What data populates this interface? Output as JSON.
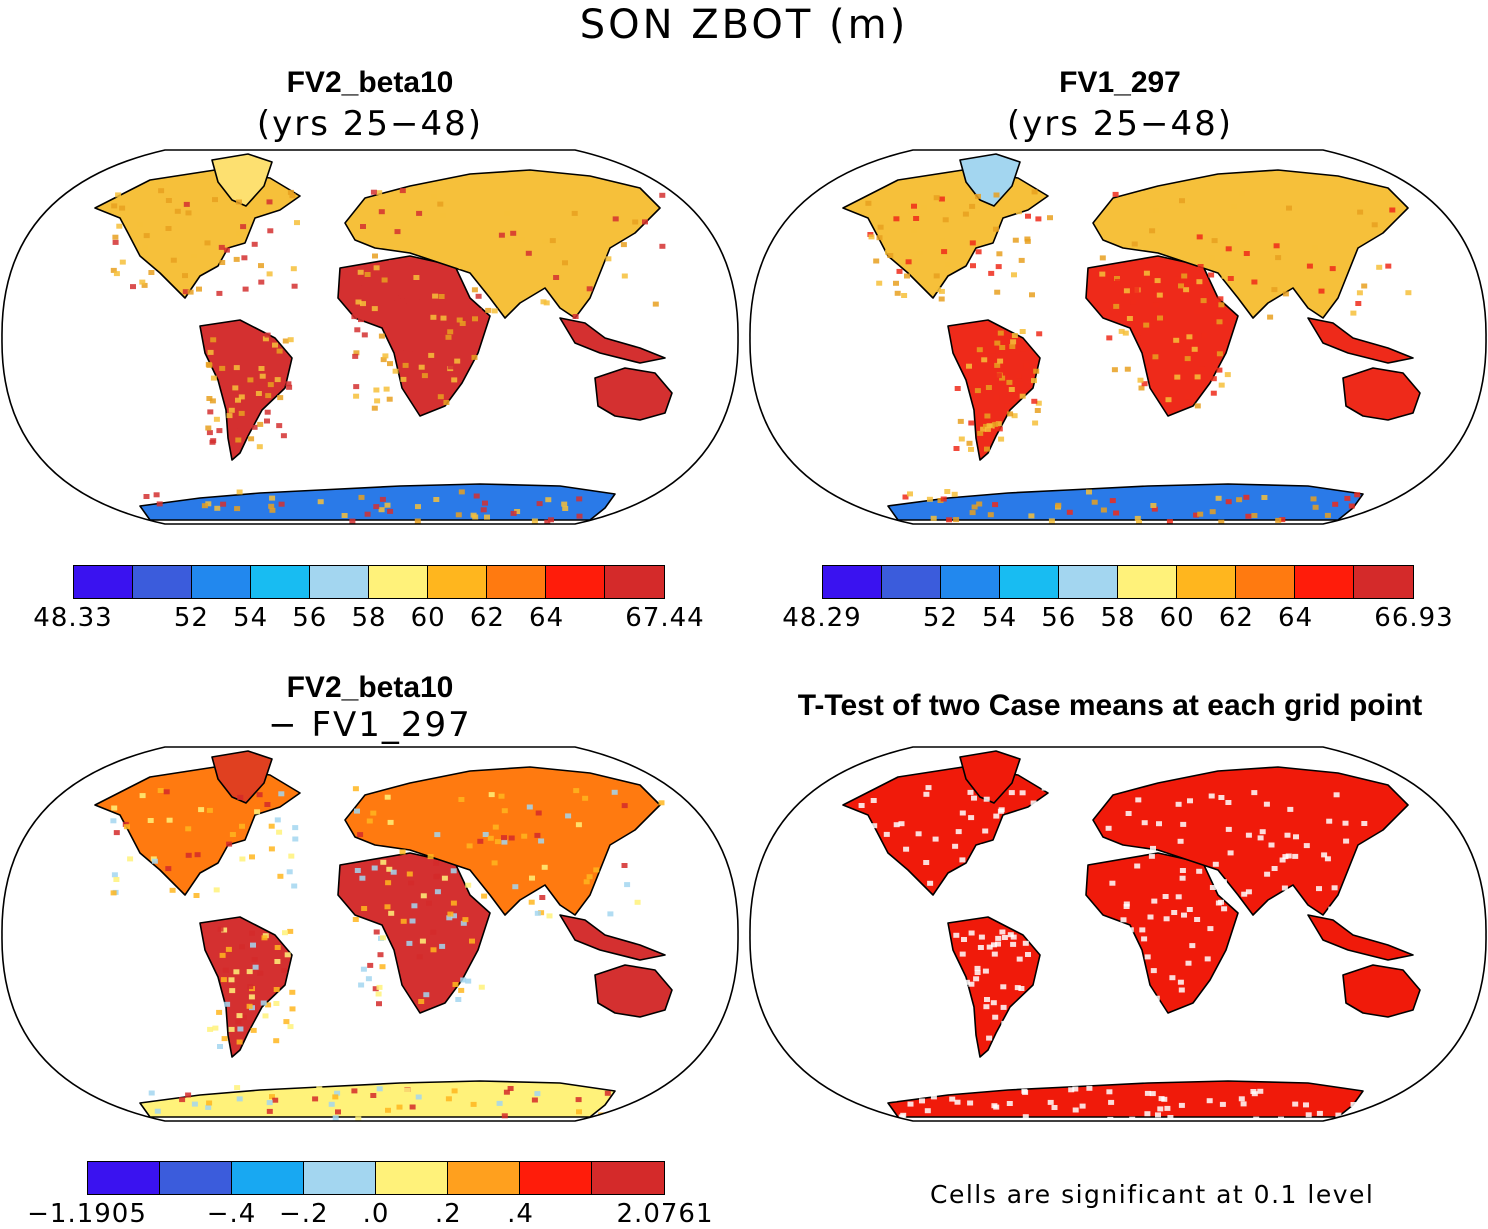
{
  "figure": {
    "title": "SON ZBOT (m)",
    "footnote": "Cells are significant at 0.1 level"
  },
  "panels": {
    "top_left": {
      "title": "FV2_beta10",
      "subtitle": "(yrs 25−48)"
    },
    "top_right": {
      "title": "FV1_297",
      "subtitle": "(yrs 25−48)"
    },
    "bottom_left": {
      "title": "FV2_beta10",
      "subtitle": "− FV1_297"
    },
    "bottom_right": {
      "title": "T-Test of two Case means at each grid point"
    }
  },
  "colorbars": {
    "top_left": {
      "colors": [
        "#3a12f0",
        "#3b5cdc",
        "#2288ee",
        "#18bcf2",
        "#a3d6f0",
        "#fff27a",
        "#ffb61e",
        "#ff7a10",
        "#ff1c0a",
        "#d42a2a"
      ],
      "labels": [
        "48.33",
        "52",
        "54",
        "56",
        "58",
        "60",
        "62",
        "64",
        "67.44"
      ]
    },
    "top_right": {
      "colors": [
        "#3a12f0",
        "#3b5cdc",
        "#2288ee",
        "#18bcf2",
        "#a3d6f0",
        "#fff27a",
        "#ffb61e",
        "#ff7a10",
        "#ff1c0a",
        "#d42a2a"
      ],
      "labels": [
        "48.29",
        "52",
        "54",
        "56",
        "58",
        "60",
        "62",
        "64",
        "66.93"
      ]
    },
    "bottom_left": {
      "colors": [
        "#3a12f0",
        "#3b5cdc",
        "#18a8f2",
        "#a3d6f0",
        "#fff27a",
        "#ffa01e",
        "#ff1c0a",
        "#d42a2a"
      ],
      "labels": [
        "−1.1905",
        "−.4",
        "−.2",
        ".0",
        ".2",
        ".4",
        "2.0761"
      ]
    }
  },
  "map_fills": {
    "top_left": {
      "land": "#e8a020",
      "tropics": "#d43030",
      "midlat": "#f6c03a",
      "arctic": "#fde070",
      "antarctic": "#2a7ae8"
    },
    "top_right": {
      "land": "#e8a020",
      "tropics": "#ee2a1a",
      "midlat": "#f6c03a",
      "arctic": "#a3d6f0",
      "antarctic": "#2a7ae8"
    },
    "bottom_left": {
      "land": "#f08a1a",
      "tropics": "#d43030",
      "midlat": "#ff7a10",
      "arctic": "#e04020",
      "antarctic": "#fff27a"
    },
    "bottom_right": {
      "land": "#f01a0a",
      "tropics": "#f01a0a",
      "midlat": "#f01a0a",
      "arctic": "#f01a0a",
      "antarctic": "#f01a0a"
    }
  }
}
